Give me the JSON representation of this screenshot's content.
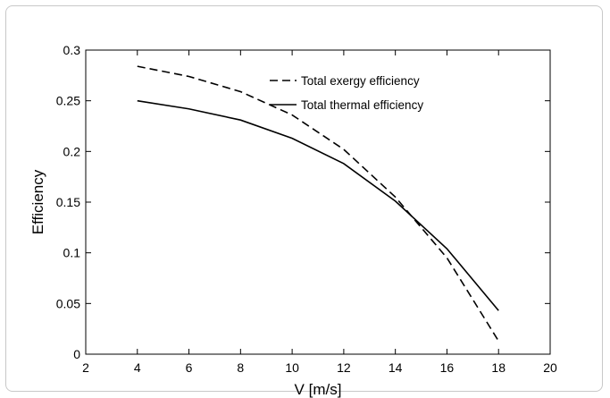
{
  "chart_data": {
    "type": "line",
    "xlabel": "V [m/s]",
    "ylabel": "Efficiency",
    "xlim": [
      2,
      20
    ],
    "ylim": [
      0,
      0.3
    ],
    "xticks": [
      "2",
      "4",
      "6",
      "8",
      "10",
      "12",
      "14",
      "16",
      "18",
      "20"
    ],
    "yticks": [
      "0",
      "0.05",
      "0.1",
      "0.15",
      "0.2",
      "0.25",
      "0.3"
    ],
    "grid": false,
    "legend_position": "top-right",
    "x": [
      4,
      6,
      8,
      10,
      12,
      14,
      16,
      18
    ],
    "series": [
      {
        "name": "Total exergy efficiency",
        "style": "dashed",
        "color": "#000000",
        "values": [
          0.284,
          0.274,
          0.259,
          0.236,
          0.202,
          0.155,
          0.095,
          0.013
        ]
      },
      {
        "name": "Total thermal efficiency",
        "style": "solid",
        "color": "#000000",
        "values": [
          0.25,
          0.242,
          0.231,
          0.213,
          0.188,
          0.151,
          0.104,
          0.043
        ]
      }
    ]
  }
}
